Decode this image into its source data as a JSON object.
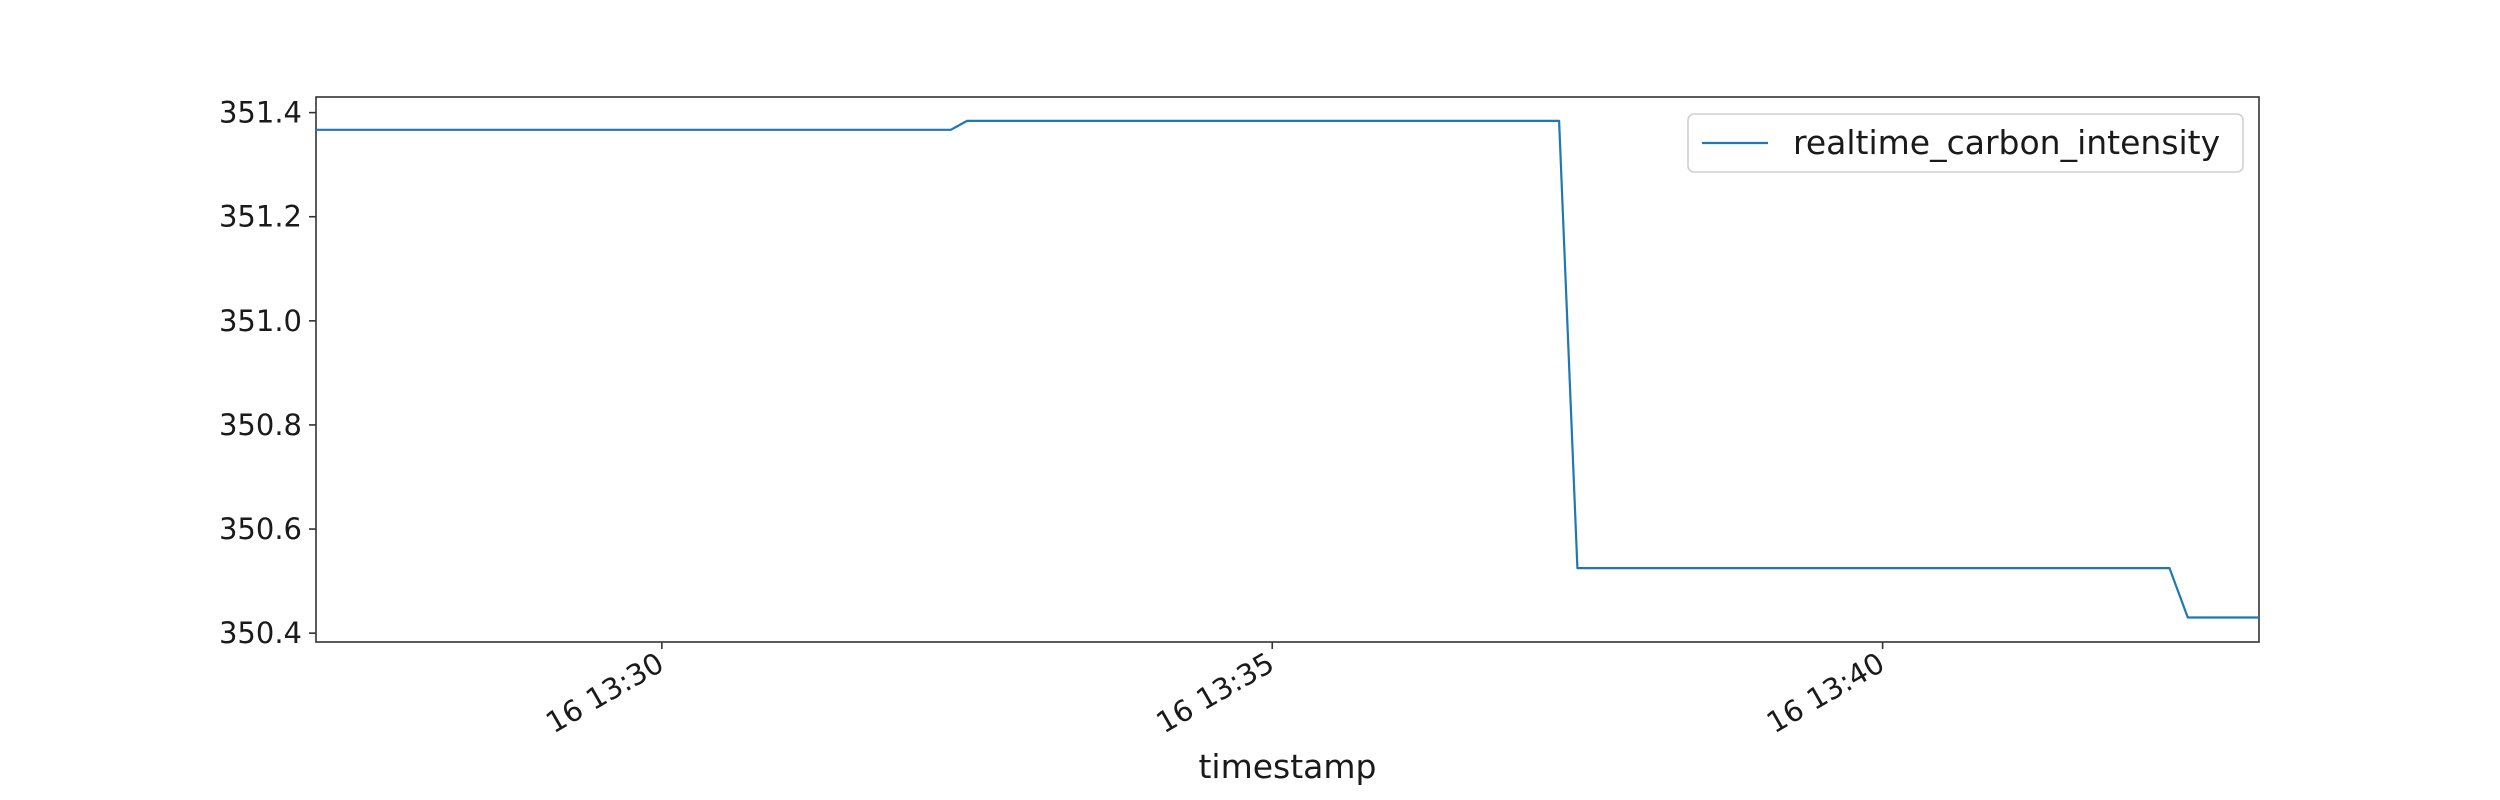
{
  "chart_data": {
    "type": "line",
    "xlabel": "timestamp",
    "ylabel": "",
    "title": "",
    "xlim": [
      "16 13:27:10",
      "16 13:43:05"
    ],
    "ylim": [
      350.383,
      351.43
    ],
    "xticks": [
      "16 13:30",
      "16 13:35",
      "16 13:40"
    ],
    "yticks": [
      351.4,
      351.2,
      351.0,
      350.8,
      350.6,
      350.4
    ],
    "ytick_labels": [
      "351.4",
      "351.2",
      "351.0",
      "350.8",
      "350.6",
      "350.4"
    ],
    "grid": false,
    "legend": {
      "position": "top-right",
      "entries": [
        "realtime_carbon_intensity"
      ]
    },
    "series": [
      {
        "name": "realtime_carbon_intensity",
        "color": "#1f77b4",
        "x": [
          "16 13:27:10",
          "16 13:32:22",
          "16 13:32:30",
          "16 13:37:21",
          "16 13:37:30",
          "16 13:42:21",
          "16 13:42:30",
          "16 13:43:05"
        ],
        "values": [
          351.367,
          351.367,
          351.384,
          351.384,
          350.525,
          350.525,
          350.43,
          350.43
        ]
      }
    ]
  }
}
